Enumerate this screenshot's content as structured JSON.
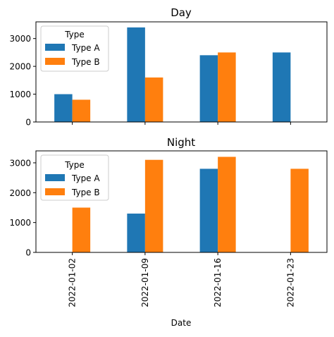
{
  "chart_data": [
    {
      "type": "bar",
      "title": "Day",
      "categories": [
        "2022-01-02",
        "2022-01-09",
        "2022-01-16",
        "2022-01-23"
      ],
      "series": [
        {
          "name": "Type A",
          "values": [
            1000,
            3400,
            2400,
            2500
          ]
        },
        {
          "name": "Type B",
          "values": [
            800,
            1600,
            2500,
            0
          ]
        }
      ],
      "ylim": [
        0,
        3600
      ],
      "yticks": [
        "0",
        "1000",
        "2000",
        "3000"
      ],
      "legend": {
        "title": "Type",
        "placement": "top-left"
      },
      "xlabel": "",
      "ylabel": ""
    },
    {
      "type": "bar",
      "title": "Night",
      "categories": [
        "2022-01-02",
        "2022-01-09",
        "2022-01-16",
        "2022-01-23"
      ],
      "series": [
        {
          "name": "Type A",
          "values": [
            0,
            1300,
            2800,
            0
          ]
        },
        {
          "name": "Type B",
          "values": [
            1500,
            3100,
            3200,
            2800
          ]
        }
      ],
      "ylim": [
        0,
        3400
      ],
      "yticks": [
        "0",
        "1000",
        "2000",
        "3000"
      ],
      "legend": {
        "title": "Type",
        "placement": "top-left"
      },
      "xlabel": "Date",
      "ylabel": ""
    }
  ],
  "colors": {
    "Type A": "#1f77b4",
    "Type B": "#ff7f0e"
  }
}
